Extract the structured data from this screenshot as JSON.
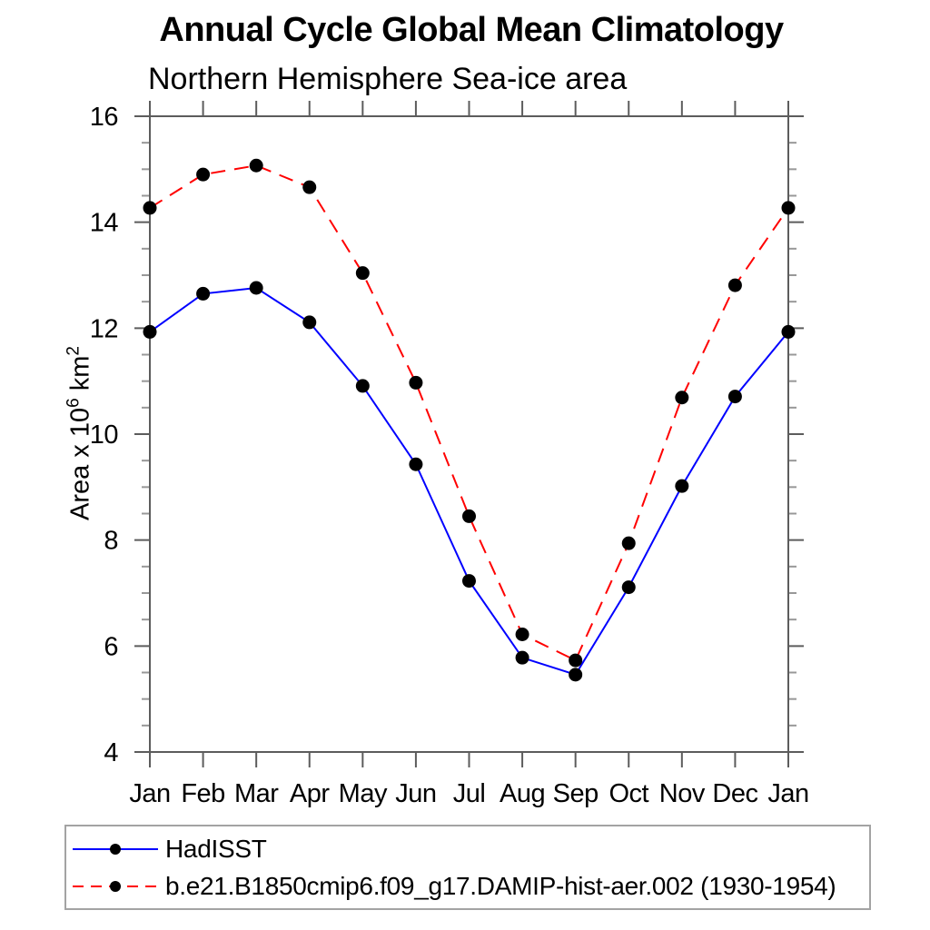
{
  "chart": {
    "title": "Annual Cycle Global Mean Climatology",
    "subtitle": "Northern Hemisphere Sea-ice area",
    "y_label": {
      "prefix": "Area x 10",
      "exp1": "6",
      "mid": " km",
      "exp2": "2"
    }
  },
  "chart_data": {
    "type": "line",
    "title": "Annual Cycle Global Mean Climatology",
    "subtitle": "Northern Hemisphere Sea-ice area",
    "xlabel": "",
    "ylabel": "Area x 10^6 km^2",
    "categories": [
      "Jan",
      "Feb",
      "Mar",
      "Apr",
      "May",
      "Jun",
      "Jul",
      "Aug",
      "Sep",
      "Oct",
      "Nov",
      "Dec",
      "Jan"
    ],
    "ylim": [
      4,
      16
    ],
    "y_major_ticks": [
      4,
      6,
      8,
      10,
      12,
      14,
      16
    ],
    "y_minor_step": 0.5,
    "grid": false,
    "legend_position": "bottom-left-box",
    "series": [
      {
        "name": "HadISST",
        "color": "#0000ff",
        "style": "solid",
        "marker": "filled-circle",
        "marker_color": "#000000",
        "values": [
          11.93,
          12.65,
          12.76,
          12.11,
          10.91,
          9.43,
          7.23,
          5.78,
          5.46,
          7.11,
          9.02,
          10.71,
          11.93
        ]
      },
      {
        "name": "b.e21.B1850cmip6.f09_g17.DAMIP-hist-aer.002 (1930-1954)",
        "color": "#ff0000",
        "style": "dashed",
        "marker": "filled-circle",
        "marker_color": "#000000",
        "values": [
          14.27,
          14.9,
          15.07,
          14.66,
          13.04,
          10.97,
          8.45,
          6.22,
          5.73,
          7.94,
          10.69,
          12.81,
          14.27
        ]
      }
    ]
  },
  "legend": {
    "items": [
      {
        "label": "HadISST"
      },
      {
        "label": "b.e21.B1850cmip6.f09_g17.DAMIP-hist-aer.002 (1930-1954)"
      }
    ]
  },
  "colors": {
    "hadisst_line": "#0000ff",
    "model_line": "#ff0000",
    "marker": "#000000",
    "axis": "#5c5c5c",
    "minor_tick": "#989898",
    "text": "#000000",
    "legend_border": "#a3a3a3",
    "background": "#ffffff"
  }
}
